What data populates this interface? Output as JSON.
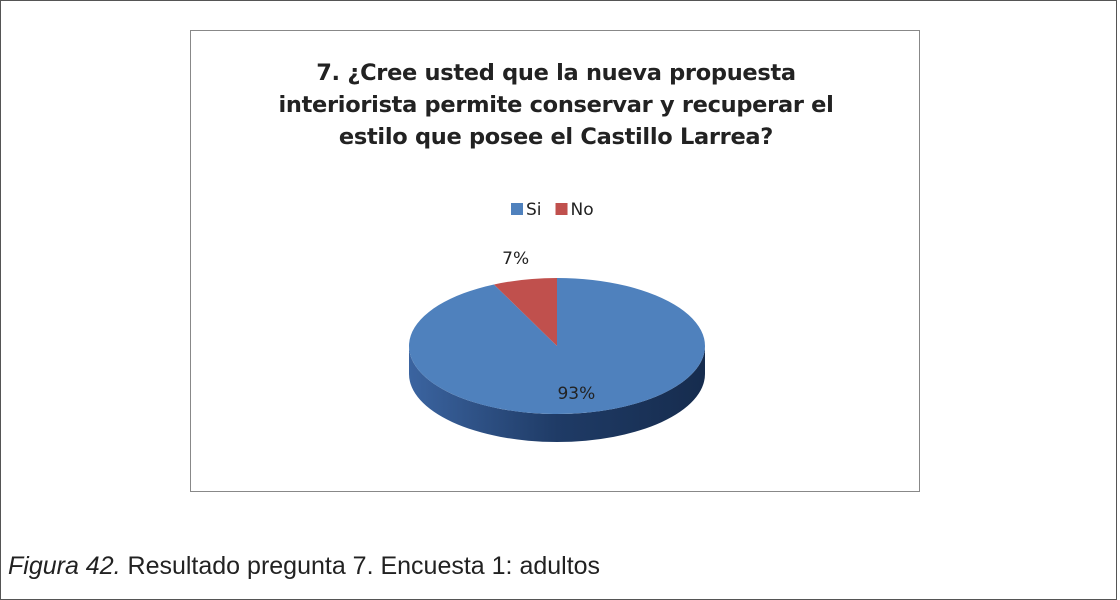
{
  "chart_data": {
    "type": "pie",
    "title": "7. ¿Cree usted que la nueva propuesta interiorista permite conservar y recuperar el estilo que posee el Castillo Larrea?",
    "categories": [
      "Si",
      "No"
    ],
    "values": [
      93,
      7
    ],
    "value_labels": [
      "93%",
      "7%"
    ],
    "colors": [
      "#4f81bd",
      "#c0504d"
    ],
    "legend": "top"
  },
  "caption": {
    "label": "Figura 42.",
    "text": "Resultado pregunta 7. Encuesta 1: adultos"
  }
}
